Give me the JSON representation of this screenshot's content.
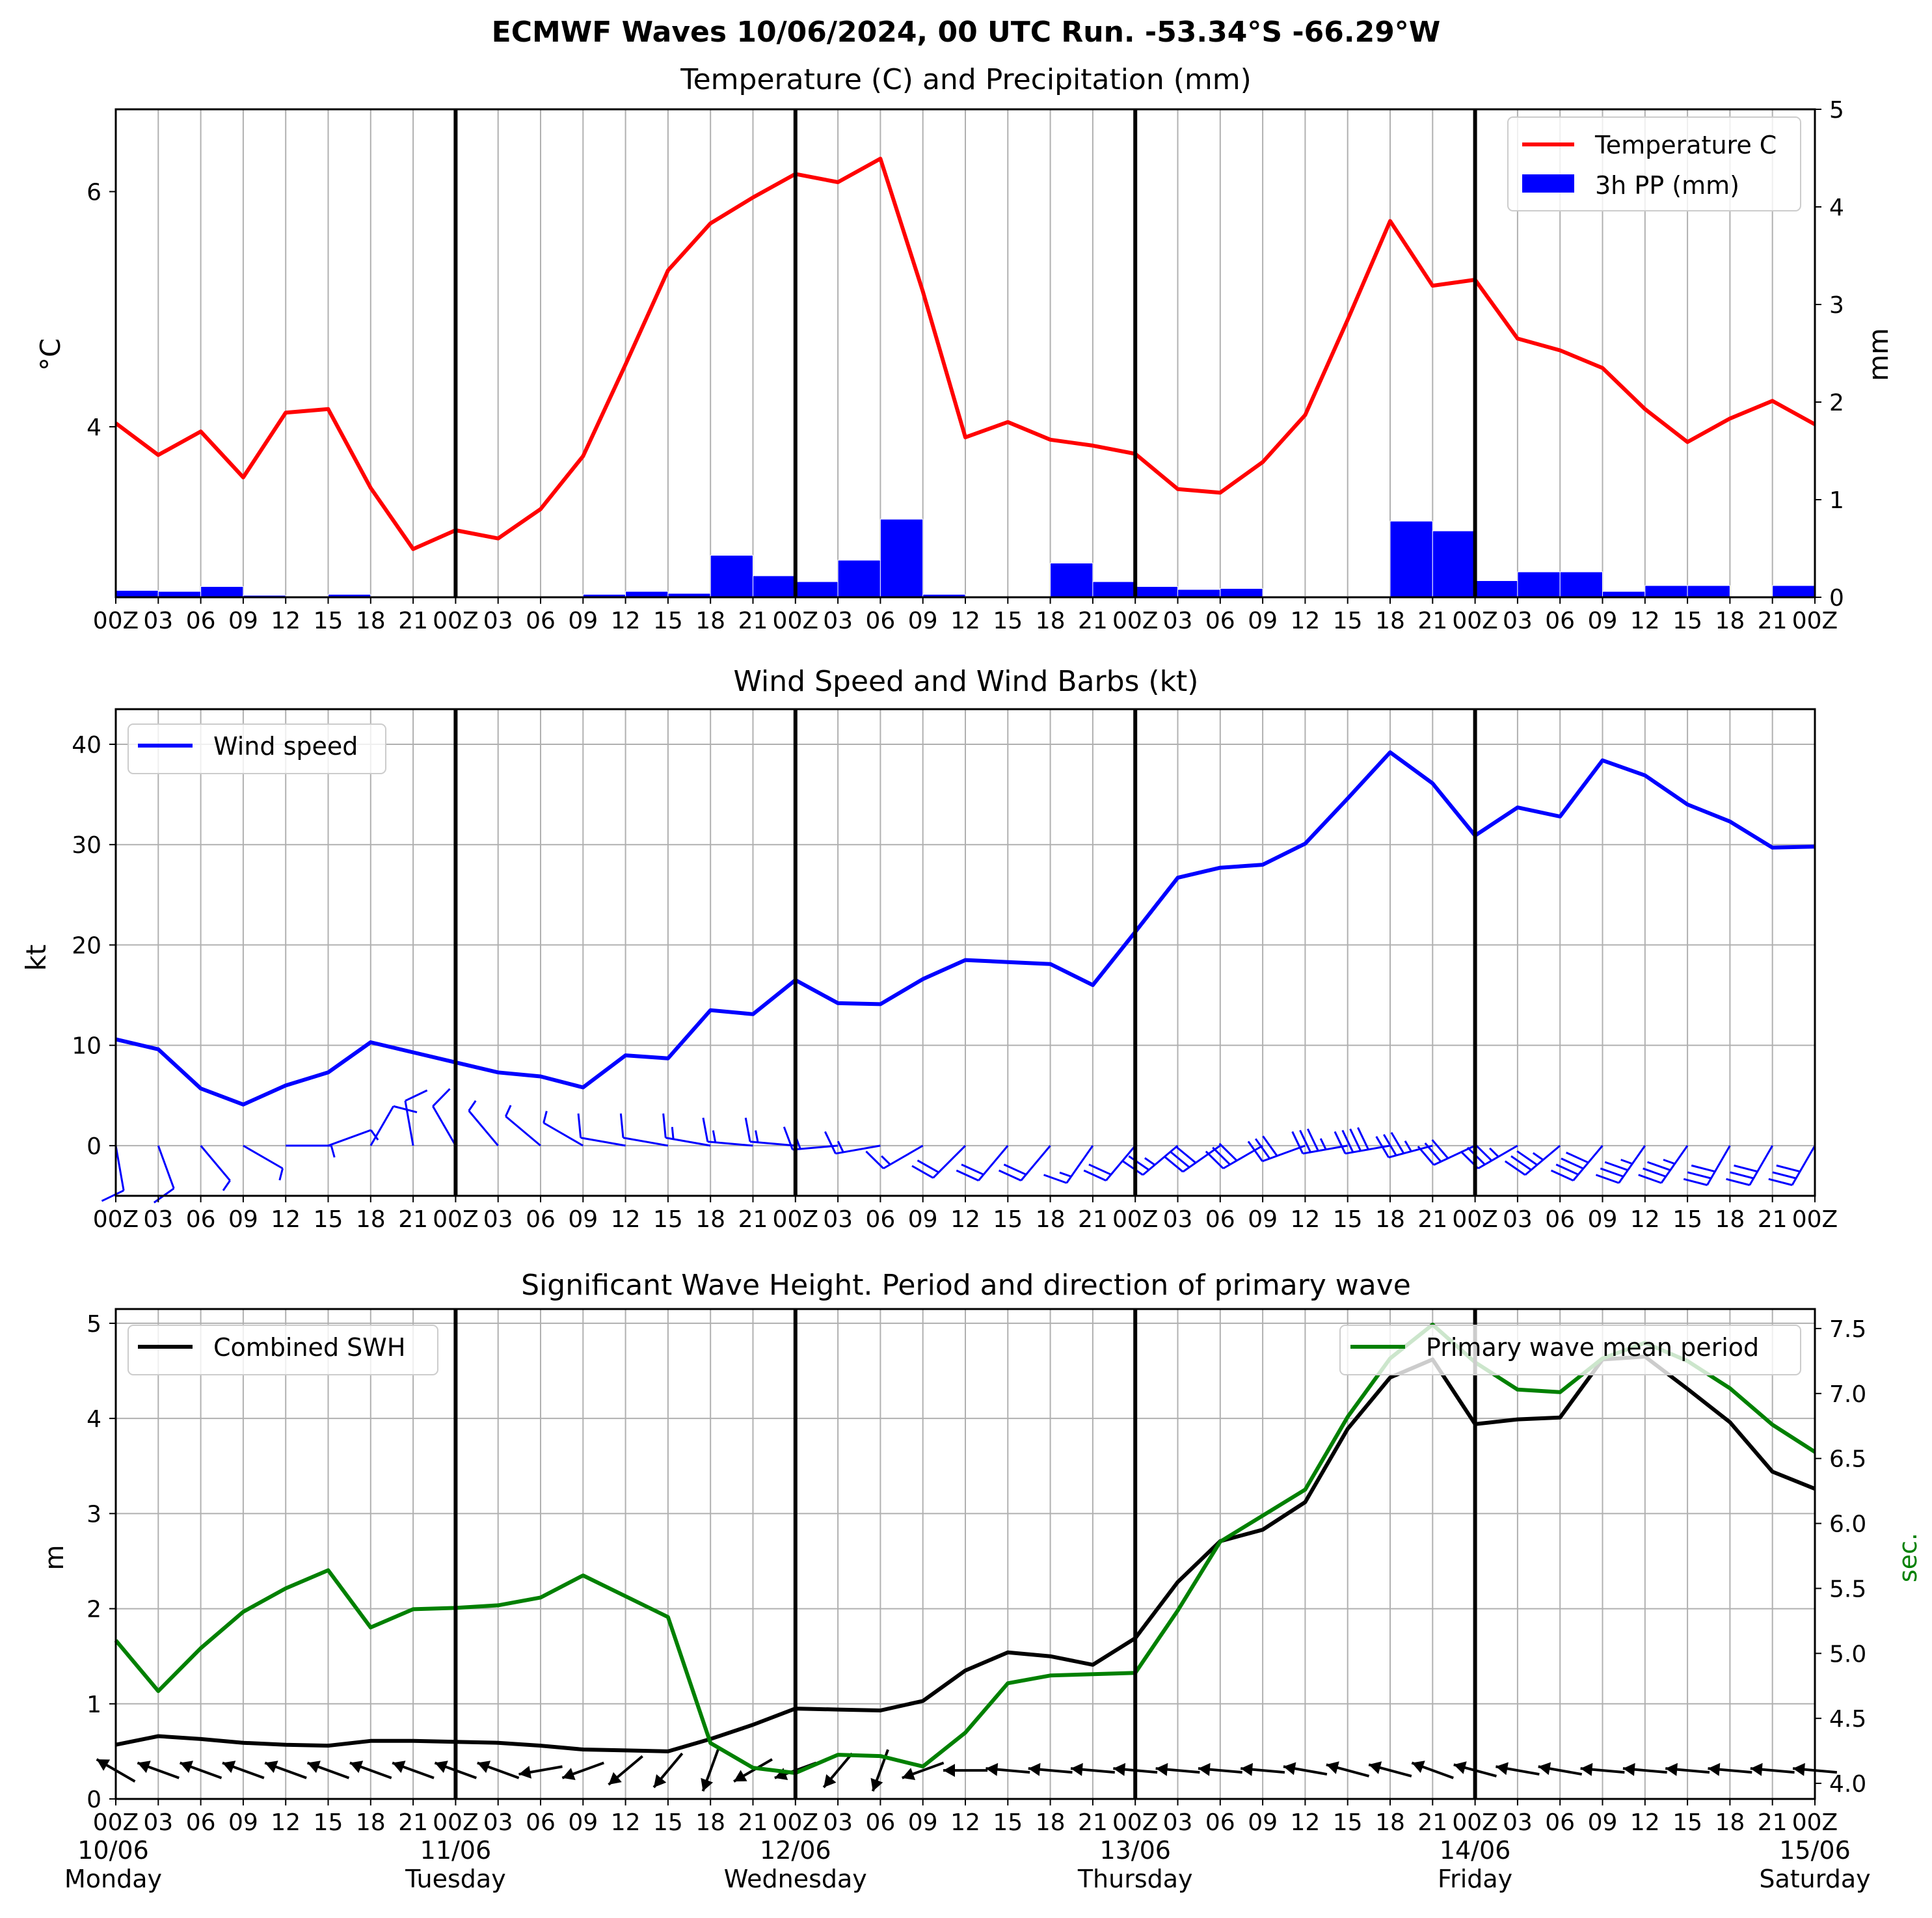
{
  "figure": {
    "title": "ECMWF Waves 10/06/2024, 00 UTC Run. -53.34°S -66.29°W"
  },
  "colors": {
    "temperature": "#ff0000",
    "precip": "#0000ff",
    "wind": "#0000ff",
    "swh": "#000000",
    "period": "#008000",
    "grid": "#b0b0b0"
  },
  "time_axis": {
    "tick_labels_short": [
      "00Z",
      "03",
      "06",
      "09",
      "12",
      "15",
      "18",
      "21",
      "00Z",
      "03",
      "06",
      "09",
      "12",
      "15",
      "18",
      "21",
      "00Z",
      "03",
      "06",
      "09",
      "12",
      "15",
      "18",
      "21",
      "00Z",
      "03",
      "06",
      "09",
      "12",
      "15",
      "18",
      "21",
      "00Z",
      "03",
      "06",
      "09",
      "12",
      "15",
      "18",
      "21",
      "00Z"
    ],
    "tick_labels_bottom": [
      "00Z",
      "03",
      "06",
      "09",
      "12",
      "15",
      "18",
      "21",
      "00Z",
      "03",
      "06",
      "09",
      "12",
      "15",
      "18",
      "21",
      "00Z",
      "03",
      "06",
      "09",
      "12",
      "15",
      "18",
      "21",
      "00Z",
      "03",
      "06",
      "09",
      "12",
      "15",
      "18",
      "21",
      "00Z",
      "03",
      "06",
      "09",
      "12",
      "15",
      "18",
      "21",
      "00Z"
    ],
    "day_dates": [
      "10/06",
      "11/06",
      "12/06",
      "13/06",
      "14/06",
      "15/06"
    ],
    "day_names": [
      "Monday",
      "Tuesday",
      "Wednesday",
      "Thursday",
      "Friday",
      "Saturday"
    ]
  },
  "chart_data": [
    {
      "type": "line",
      "title": "Temperature (C) and Precipitation (mm)",
      "ylabel": "°C",
      "ylabel_right": "mm",
      "ylim": [
        2.55,
        6.7
      ],
      "yticks": [
        4,
        6
      ],
      "ylim_right": [
        0,
        5
      ],
      "yticks_right": [
        0,
        1,
        2,
        3,
        4,
        5
      ],
      "legend": "top-right",
      "series": [
        {
          "name": "Temperature C",
          "kind": "line",
          "axis": "left",
          "values": [
            4.03,
            3.76,
            3.96,
            3.57,
            4.12,
            4.15,
            3.48,
            2.96,
            3.12,
            3.05,
            3.3,
            3.75,
            4.53,
            5.33,
            5.73,
            5.95,
            6.15,
            6.08,
            6.28,
            5.15,
            3.91,
            4.04,
            3.89,
            3.84,
            3.77,
            3.47,
            3.44,
            3.7,
            4.1,
            4.91,
            5.75,
            5.2,
            5.25,
            4.75,
            4.65,
            4.5,
            4.15,
            3.87,
            4.07,
            4.22,
            4.02
          ]
        },
        {
          "name": "3h PP (mm)",
          "kind": "bar",
          "axis": "right",
          "values": [
            0.07,
            0.06,
            0.11,
            0.02,
            0.0,
            0.03,
            0.0,
            0.0,
            0.0,
            0.0,
            0.0,
            0.03,
            0.06,
            0.04,
            0.43,
            0.22,
            0.16,
            0.38,
            0.8,
            0.03,
            0.0,
            0.0,
            0.35,
            0.16,
            0.11,
            0.08,
            0.09,
            0.01,
            0.01,
            0.01,
            0.78,
            0.68,
            0.17,
            0.26,
            0.26,
            0.06,
            0.12,
            0.12,
            0.0,
            0.12
          ]
        }
      ]
    },
    {
      "type": "line",
      "title": "Wind Speed and Wind Barbs (kt)",
      "ylabel": "kt",
      "ylim": [
        -5,
        43.5
      ],
      "yticks": [
        0,
        10,
        20,
        30,
        40
      ],
      "legend": "top-left",
      "series": [
        {
          "name": "Wind speed",
          "values": [
            10.6,
            9.6,
            5.7,
            4.1,
            6.0,
            7.3,
            10.3,
            9.3,
            8.3,
            7.3,
            6.9,
            5.8,
            9.0,
            8.7,
            13.5,
            13.1,
            16.5,
            14.2,
            14.1,
            16.6,
            18.5,
            18.3,
            18.1,
            16.0,
            21.3,
            26.7,
            27.7,
            28.0,
            30.1,
            34.6,
            39.2,
            36.1,
            30.9,
            33.7,
            32.8,
            38.4,
            36.9,
            34.0,
            32.3,
            29.7,
            29.8
          ]
        }
      ],
      "barb_directions_deg": [
        10,
        20,
        40,
        60,
        90,
        110,
        150,
        190,
        210,
        220,
        230,
        240,
        260,
        260,
        260,
        265,
        265,
        275,
        280,
        300,
        315,
        320,
        320,
        325,
        320,
        310,
        305,
        300,
        290,
        280,
        280,
        285,
        295,
        300,
        310,
        320,
        325,
        325,
        330,
        330,
        330
      ]
    },
    {
      "type": "line",
      "title": "Significant Wave Height. Period and direction of primary wave",
      "ylabel": "m",
      "ylabel_right": "sec.",
      "ylim": [
        0,
        5.15
      ],
      "yticks": [
        0,
        1,
        2,
        3,
        4,
        5
      ],
      "ylim_right": [
        3.88,
        7.65
      ],
      "yticks_right": [
        4.0,
        4.5,
        5.0,
        5.5,
        6.0,
        6.5,
        7.0,
        7.5
      ],
      "legend": "top-left / top-right",
      "series": [
        {
          "name": "Combined SWH",
          "axis": "left",
          "values": [
            0.57,
            0.66,
            0.63,
            0.59,
            0.57,
            0.56,
            0.61,
            0.61,
            0.6,
            0.59,
            0.56,
            0.52,
            0.51,
            0.5,
            0.63,
            0.78,
            0.95,
            0.94,
            0.93,
            1.03,
            1.35,
            1.54,
            1.5,
            1.41,
            1.69,
            2.28,
            2.71,
            2.83,
            3.12,
            3.89,
            4.43,
            4.62,
            3.94,
            3.99,
            4.01,
            4.62,
            4.65,
            4.31,
            3.96,
            3.44,
            3.26
          ]
        },
        {
          "name": "Primary wave mean period",
          "axis": "right",
          "values": [
            5.1,
            4.71,
            5.04,
            5.32,
            5.5,
            5.64,
            5.2,
            5.34,
            5.35,
            5.37,
            5.43,
            5.6,
            5.44,
            5.28,
            4.31,
            4.12,
            4.08,
            4.22,
            4.21,
            4.13,
            4.39,
            4.77,
            4.83,
            4.84,
            4.85,
            5.33,
            5.86,
            6.06,
            6.26,
            6.82,
            7.27,
            7.53,
            7.24,
            7.03,
            7.01,
            7.27,
            7.39,
            7.25,
            7.04,
            6.76,
            6.55
          ]
        }
      ],
      "arrow_directions_deg": [
        300,
        290,
        290,
        290,
        290,
        290,
        290,
        290,
        290,
        290,
        260,
        250,
        230,
        220,
        200,
        240,
        250,
        220,
        200,
        250,
        270,
        275,
        275,
        275,
        275,
        275,
        275,
        275,
        280,
        285,
        285,
        290,
        285,
        280,
        280,
        275,
        275,
        275,
        275,
        275,
        275
      ]
    }
  ]
}
